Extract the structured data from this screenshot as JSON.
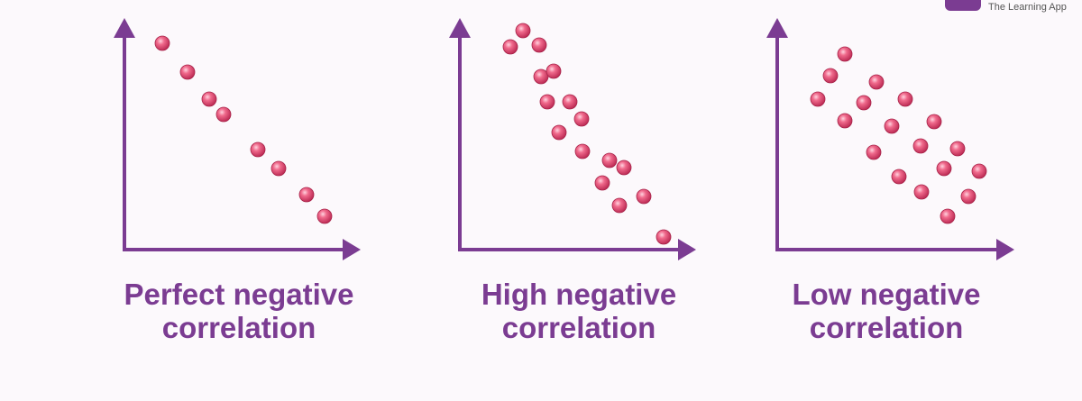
{
  "logo": {
    "text": "The Learning App"
  },
  "panels": [
    {
      "caption": [
        "Perfect negative",
        "correlation"
      ]
    },
    {
      "caption": [
        "High negative",
        "correlation"
      ]
    },
    {
      "caption": [
        "Low negative",
        "correlation"
      ]
    }
  ]
}
